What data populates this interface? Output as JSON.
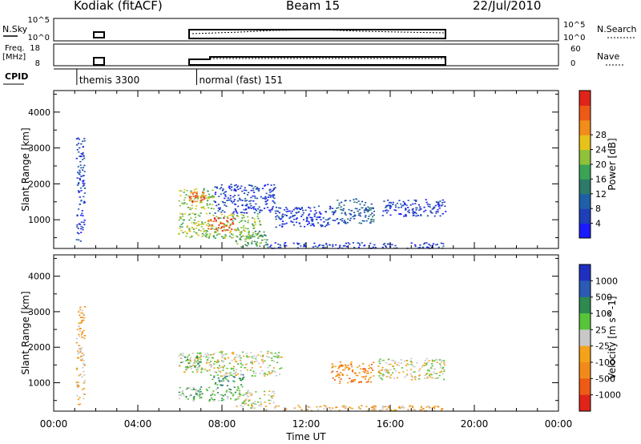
{
  "header": {
    "station": "Kodiak (fitACF)",
    "beam": "Beam 15",
    "date": "22/Jul/2010"
  },
  "side_labels": {
    "nsky": "N.Sky",
    "nsearch": "N.Search",
    "freq_line1": "Freq.",
    "freq_line2": "[MHz]",
    "nave": "Nave",
    "cpid": "CPID"
  },
  "noise_axis": {
    "left_ticks": [
      "10^5",
      "10^0"
    ],
    "right_ticks": [
      "10^5",
      "10^0"
    ]
  },
  "freq_axis": {
    "left_ticks": [
      "18",
      "8"
    ],
    "right_ticks": [
      "60",
      "0"
    ]
  },
  "cpid_labels": [
    {
      "text": "themis 3300",
      "at_hour": 1.1
    },
    {
      "text": "normal (fast) 151",
      "at_hour": 6.8
    }
  ],
  "chart_data": [
    {
      "type": "heatmap",
      "name": "power",
      "title": "",
      "xlabel": "",
      "ylabel": "Slant Range [km]",
      "xlim": [
        0,
        24
      ],
      "ylim": [
        200,
        4600
      ],
      "yticks": [
        "1000",
        "2000",
        "3000",
        "4000"
      ],
      "x_tick_labels": [
        "00:00",
        "04:00",
        "08:00",
        "12:00",
        "16:00",
        "20:00",
        "00:00"
      ],
      "colorbar": {
        "label": "Power [dB]",
        "ticks": [
          "4",
          "8",
          "12",
          "16",
          "20",
          "24",
          "28"
        ],
        "colors": [
          "#1a1aff",
          "#1f3fb8",
          "#1f5fa8",
          "#2e7a6a",
          "#3aa356",
          "#8fc23a",
          "#e6c21a",
          "#f28c1a",
          "#ee5a16",
          "#e0241a"
        ]
      },
      "echo_regions": [
        {
          "t0": 1.05,
          "t1": 1.45,
          "r0": 400,
          "r1": 3300,
          "level": 1
        },
        {
          "t0": 5.9,
          "t1": 7.6,
          "r0": 1300,
          "r1": 1900,
          "level": 5
        },
        {
          "t0": 6.4,
          "t1": 7.2,
          "r0": 1500,
          "r1": 1800,
          "level": 8
        },
        {
          "t0": 5.9,
          "t1": 9.8,
          "r0": 500,
          "r1": 1200,
          "level": 5
        },
        {
          "t0": 7.3,
          "t1": 8.6,
          "r0": 700,
          "r1": 1100,
          "level": 8
        },
        {
          "t0": 8.6,
          "t1": 10.2,
          "r0": 250,
          "r1": 700,
          "level": 4
        },
        {
          "t0": 7.6,
          "t1": 10.5,
          "r0": 1200,
          "r1": 2000,
          "level": 1
        },
        {
          "t0": 10.5,
          "t1": 13.5,
          "r0": 800,
          "r1": 1400,
          "level": 1
        },
        {
          "t0": 13.4,
          "t1": 15.2,
          "r0": 900,
          "r1": 1600,
          "level": 2
        },
        {
          "t0": 15.6,
          "t1": 18.6,
          "r0": 1100,
          "r1": 1600,
          "level": 1
        },
        {
          "t0": 10.0,
          "t1": 18.6,
          "r0": 220,
          "r1": 380,
          "level": 1
        }
      ]
    },
    {
      "type": "heatmap",
      "name": "velocity",
      "title": "",
      "xlabel": "Time UT",
      "ylabel": "Slant Range [km]",
      "xlim": [
        0,
        24
      ],
      "ylim": [
        200,
        4600
      ],
      "yticks": [
        "1000",
        "2000",
        "3000",
        "4000"
      ],
      "x_tick_labels": [
        "00:00",
        "04:00",
        "08:00",
        "12:00",
        "16:00",
        "20:00",
        "00:00"
      ],
      "colorbar": {
        "label": "Velocity [m s^-1]",
        "ticks": [
          "1000",
          "500",
          "100",
          "25",
          "-25",
          "-100",
          "-500",
          "-1000"
        ],
        "colors": [
          "#1f30c0",
          "#2a5ab4",
          "#2e8a50",
          "#58c43a",
          "#c8c8c8",
          "#f4a21a",
          "#f28a1a",
          "#ef5a14",
          "#e0241a"
        ]
      },
      "echo_regions": [
        {
          "t0": 1.05,
          "t1": 1.45,
          "r0": 400,
          "r1": 3300,
          "level": 5
        },
        {
          "t0": 5.9,
          "t1": 7.2,
          "r0": 1300,
          "r1": 1900,
          "level": 4
        },
        {
          "t0": 6.0,
          "t1": 7.0,
          "r0": 1400,
          "r1": 1800,
          "level": 3
        },
        {
          "t0": 5.9,
          "t1": 8.8,
          "r0": 500,
          "r1": 900,
          "level": 3
        },
        {
          "t0": 7.5,
          "t1": 9.0,
          "r0": 900,
          "r1": 1250,
          "level": 2
        },
        {
          "t0": 7.2,
          "t1": 10.8,
          "r0": 1200,
          "r1": 1900,
          "level": 4
        },
        {
          "t0": 8.6,
          "t1": 10.5,
          "r0": 300,
          "r1": 800,
          "level": 4
        },
        {
          "t0": 13.1,
          "t1": 15.2,
          "r0": 1000,
          "r1": 1600,
          "level": 6
        },
        {
          "t0": 15.4,
          "t1": 18.6,
          "r0": 1100,
          "r1": 1700,
          "level": 4
        },
        {
          "t0": 10.0,
          "t1": 18.6,
          "r0": 220,
          "r1": 380,
          "level": 5
        }
      ]
    }
  ]
}
